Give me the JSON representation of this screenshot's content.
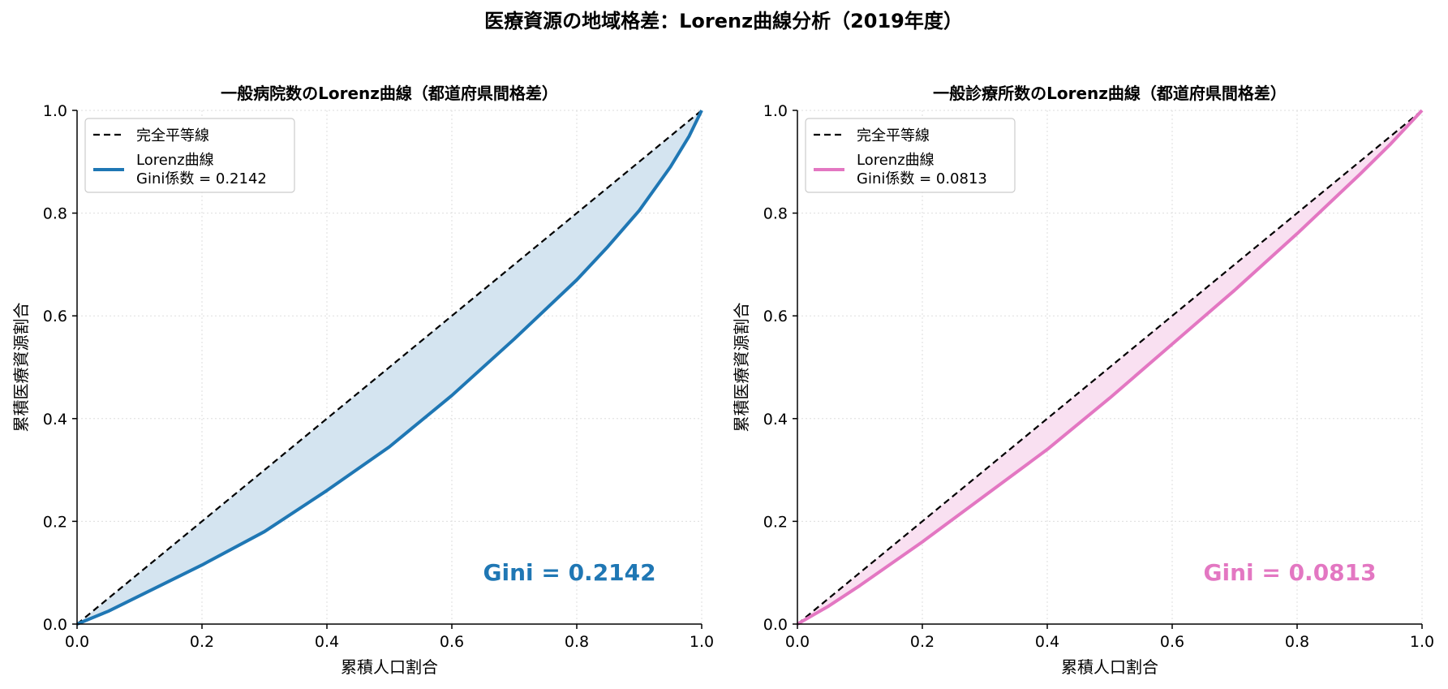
{
  "figure": {
    "suptitle": "医療資源の地域格差：Lorenz曲線分析（2019年度）"
  },
  "chart_data": [
    {
      "type": "line",
      "title": "一般病院数のLorenz曲線（都道府県間格差）",
      "xlabel": "累積人口割合",
      "ylabel": "累積医療資源割合",
      "xlim": [
        0,
        1
      ],
      "ylim": [
        0,
        1
      ],
      "xticks": [
        0.0,
        0.2,
        0.4,
        0.6,
        0.8,
        1.0
      ],
      "yticks": [
        0.0,
        0.2,
        0.4,
        0.6,
        0.8,
        1.0
      ],
      "tick_labels": [
        "0.0",
        "0.2",
        "0.4",
        "0.6",
        "0.8",
        "1.0"
      ],
      "grid": true,
      "legend_position": "top-left",
      "color": "#1f77b4",
      "fill_color": "#d4e4f0",
      "equality_line": {
        "name": "完全平等線",
        "x": [
          0,
          1
        ],
        "y": [
          0,
          1
        ]
      },
      "series": [
        {
          "name": "Lorenz曲線\nGini係数 = 0.2142",
          "x": [
            0.0,
            0.05,
            0.1,
            0.2,
            0.3,
            0.4,
            0.5,
            0.57,
            0.6,
            0.7,
            0.8,
            0.85,
            0.9,
            0.95,
            0.98,
            1.0
          ],
          "y": [
            0.0,
            0.025,
            0.055,
            0.115,
            0.18,
            0.26,
            0.345,
            0.415,
            0.445,
            0.555,
            0.67,
            0.735,
            0.805,
            0.89,
            0.95,
            1.0
          ]
        }
      ],
      "annotation": "Gini = 0.2142"
    },
    {
      "type": "line",
      "title": "一般診療所数のLorenz曲線（都道府県間格差）",
      "xlabel": "累積人口割合",
      "ylabel": "累積医療資源割合",
      "xlim": [
        0,
        1
      ],
      "ylim": [
        0,
        1
      ],
      "xticks": [
        0.0,
        0.2,
        0.4,
        0.6,
        0.8,
        1.0
      ],
      "yticks": [
        0.0,
        0.2,
        0.4,
        0.6,
        0.8,
        1.0
      ],
      "tick_labels": [
        "0.0",
        "0.2",
        "0.4",
        "0.6",
        "0.8",
        "1.0"
      ],
      "grid": true,
      "legend_position": "top-left",
      "color": "#e377c2",
      "fill_color": "#f9e0f1",
      "equality_line": {
        "name": "完全平等線",
        "x": [
          0,
          1
        ],
        "y": [
          0,
          1
        ]
      },
      "series": [
        {
          "name": "Lorenz曲線\nGini係数 = 0.0813",
          "x": [
            0.0,
            0.05,
            0.1,
            0.2,
            0.3,
            0.4,
            0.5,
            0.6,
            0.7,
            0.8,
            0.9,
            0.95,
            1.0
          ],
          "y": [
            0.0,
            0.035,
            0.075,
            0.16,
            0.25,
            0.34,
            0.44,
            0.545,
            0.65,
            0.76,
            0.875,
            0.935,
            1.0
          ]
        }
      ],
      "annotation": "Gini = 0.0813"
    }
  ]
}
